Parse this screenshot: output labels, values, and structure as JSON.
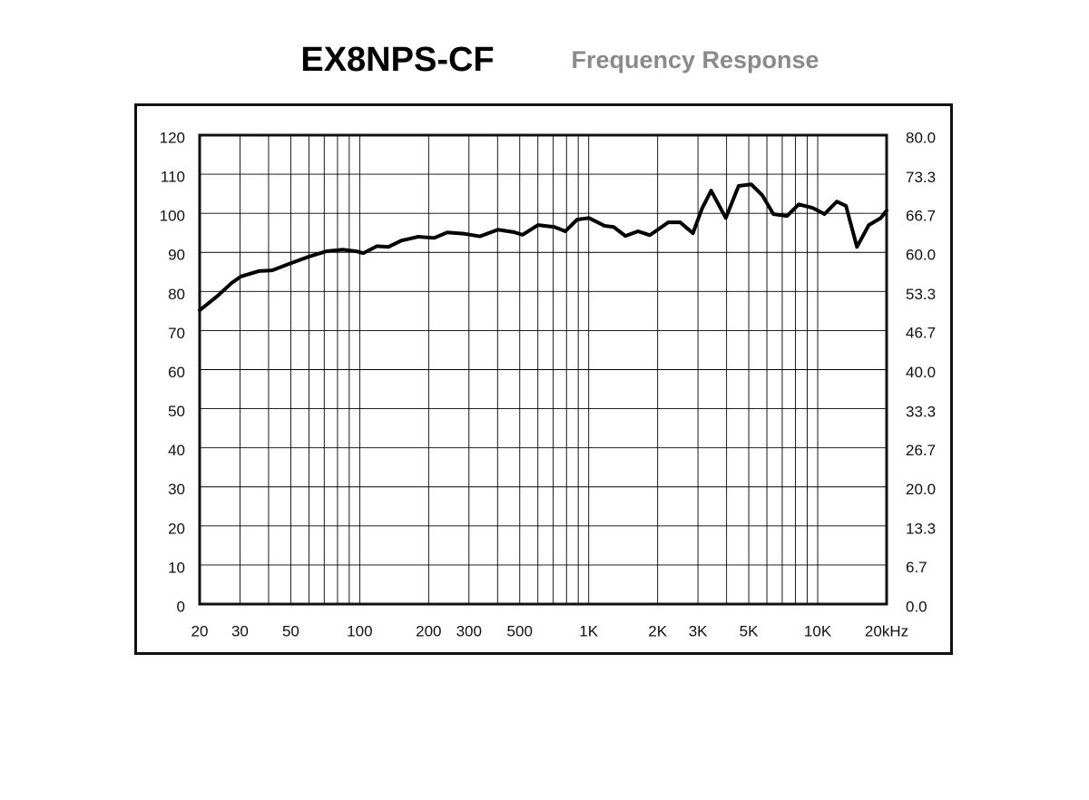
{
  "chart_data": {
    "type": "line",
    "title": "EX8NPS-CF",
    "subtitle": "Frequency Response",
    "xscale": "log",
    "color": "#000000",
    "grid": true,
    "x": [
      20,
      24,
      27.5,
      30.2,
      36.2,
      41.4,
      48.9,
      59.9,
      71.8,
      84.3,
      96.2,
      103.7,
      118.9,
      133.5,
      151.8,
      179.6,
      211.6,
      240.9,
      284,
      334.6,
      401.5,
      469.6,
      514.5,
      601,
      708.6,
      791,
      890,
      1002,
      1172,
      1285,
      1446,
      1643,
      1850,
      2226,
      2508,
      2851,
      3125,
      3425,
      3969,
      4515,
      5131,
      5731,
      6403,
      7342,
      8271,
      9497,
      10704,
      12120,
      13290,
      14840,
      16720,
      18860,
      20000
    ],
    "values": [
      75.2,
      78.9,
      82.1,
      83.8,
      85.2,
      85.4,
      87.0,
      88.9,
      90.3,
      90.7,
      90.3,
      89.8,
      91.6,
      91.4,
      93.0,
      94.0,
      93.7,
      95.1,
      94.8,
      94.1,
      95.8,
      95.2,
      94.5,
      97.0,
      96.5,
      95.4,
      98.4,
      98.8,
      96.8,
      96.5,
      94.2,
      95.4,
      94.4,
      97.7,
      97.7,
      94.9,
      101.2,
      105.8,
      98.8,
      107.0,
      107.4,
      104.6,
      99.8,
      99.3,
      102.3,
      101.4,
      99.8,
      103.0,
      101.9,
      91.4,
      97.0,
      98.8,
      100.7
    ],
    "xlim": [
      20,
      20000
    ],
    "xticks": [
      20,
      30,
      50,
      100,
      200,
      300,
      500,
      {
        "value": 1000,
        "label": "1K"
      },
      {
        "value": 2000,
        "label": "2K"
      },
      {
        "value": 3000,
        "label": "3K"
      },
      {
        "value": 5000,
        "label": "5K"
      },
      {
        "value": 10000,
        "label": "10K"
      },
      {
        "value": 20000,
        "label": "20kHz"
      }
    ],
    "xgrid_minor": [
      40,
      60,
      70,
      80,
      90,
      400,
      600,
      700,
      800,
      900,
      4000,
      6000,
      7000,
      8000,
      9000
    ],
    "ylim": [
      0,
      120
    ],
    "yticks": [
      0,
      10,
      20,
      30,
      40,
      50,
      60,
      70,
      80,
      90,
      100,
      110,
      120
    ],
    "y2lim": [
      0,
      80
    ],
    "y2ticks": [
      {
        "value": 0,
        "label": "0.0"
      },
      6.7,
      13.3,
      {
        "value": 20,
        "label": "20.0"
      },
      26.7,
      33.3,
      {
        "value": 40,
        "label": "40.0"
      },
      46.7,
      53.3,
      {
        "value": 60,
        "label": "60.0"
      },
      66.7,
      73.3,
      {
        "value": 80,
        "label": "80.0"
      }
    ]
  }
}
